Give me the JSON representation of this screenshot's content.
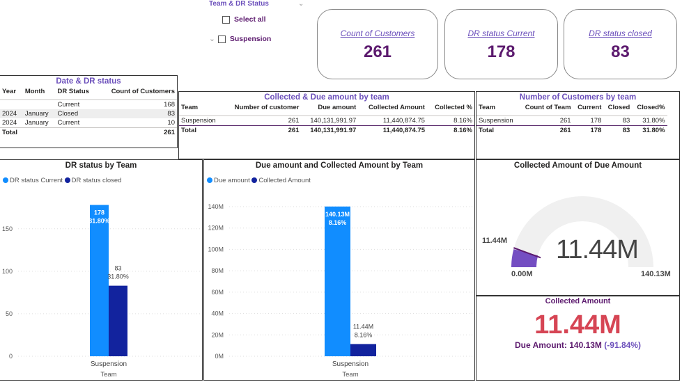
{
  "colors": {
    "accent": "#6b4fbb",
    "series_light": "#118dff",
    "series_dark": "#12239e",
    "kpi_red": "#d64554",
    "gauge_fill": "#744ec2",
    "gauge_track": "#f0f0f0"
  },
  "slicer": {
    "title": "Team & DR Status",
    "items": [
      {
        "label": "Select all",
        "checked": false
      },
      {
        "label": "Suspension",
        "checked": false,
        "expandable": true
      }
    ]
  },
  "cards": [
    {
      "label": "Count of Customers",
      "value": "261"
    },
    {
      "label": "DR status Current",
      "value": "178"
    },
    {
      "label": "DR status closed",
      "value": "83"
    }
  ],
  "date_table": {
    "title": "Date & DR status",
    "columns": [
      "Year",
      "Month",
      "DR Status",
      "Count of Customers"
    ],
    "rows": [
      [
        "",
        "",
        "Current",
        "168"
      ],
      [
        "2024",
        "January",
        "Closed",
        "83"
      ],
      [
        "2024",
        "January",
        "Current",
        "10"
      ]
    ],
    "total": [
      "Total",
      "",
      "",
      "261"
    ]
  },
  "amount_table": {
    "title": "Collected & Due amount by team",
    "columns": [
      "Team",
      "Number of customer",
      "Due amount",
      "Collected Amount",
      "Collected %"
    ],
    "rows": [
      [
        "Suspension",
        "261",
        "140,131,991.97",
        "11,440,874.75",
        "8.16%"
      ]
    ],
    "total": [
      "Total",
      "261",
      "140,131,991.97",
      "11,440,874.75",
      "8.16%"
    ]
  },
  "customers_table": {
    "title": "Number of Customers by team",
    "columns": [
      "Team",
      "Count of Team",
      "Current",
      "Closed",
      "Closed%"
    ],
    "rows": [
      [
        "Suspension",
        "261",
        "178",
        "83",
        "31.80%"
      ]
    ],
    "total": [
      "Total",
      "261",
      "178",
      "83",
      "31.80%"
    ]
  },
  "chart_data": [
    {
      "type": "bar",
      "title": "DR status by Team",
      "xlabel": "Team",
      "categories": [
        "Suspension"
      ],
      "series": [
        {
          "name": "DR status Current",
          "values": [
            178
          ],
          "labels": [
            "178",
            "31.80%"
          ]
        },
        {
          "name": "DR status closed",
          "values": [
            83
          ],
          "labels": [
            "83",
            "31.80%"
          ]
        }
      ],
      "yticks": [
        "0",
        "50",
        "100",
        "150"
      ],
      "ylim": [
        0,
        185
      ],
      "grid": true,
      "legend": "top-left"
    },
    {
      "type": "bar",
      "title": "Due amount and Collected Amount by Team",
      "xlabel": "Team",
      "categories": [
        "Suspension"
      ],
      "series": [
        {
          "name": "Due amount",
          "values": [
            140.13
          ],
          "labels": [
            "140.13M",
            "8.16%"
          ]
        },
        {
          "name": "Collected Amount",
          "values": [
            11.44
          ],
          "labels": [
            "11.44M",
            "8.16%"
          ]
        }
      ],
      "yticks": [
        "0M",
        "20M",
        "40M",
        "60M",
        "80M",
        "100M",
        "120M",
        "140M"
      ],
      "ylim": [
        0,
        145
      ],
      "unit": "M",
      "grid": true,
      "legend": "top-left"
    }
  ],
  "gauge": {
    "title": "Collected Amount of Due Amount",
    "value": 11.44,
    "min": 0,
    "max": 140.13,
    "value_label": "11.44M",
    "min_label": "0.00M",
    "max_label": "140.13M",
    "pointer_label": "11.44M"
  },
  "kpi": {
    "title": "Collected Amount",
    "value": "11.44M",
    "goal_text": "Due Amount: 140.13M",
    "delta": "(-91.84%)"
  }
}
